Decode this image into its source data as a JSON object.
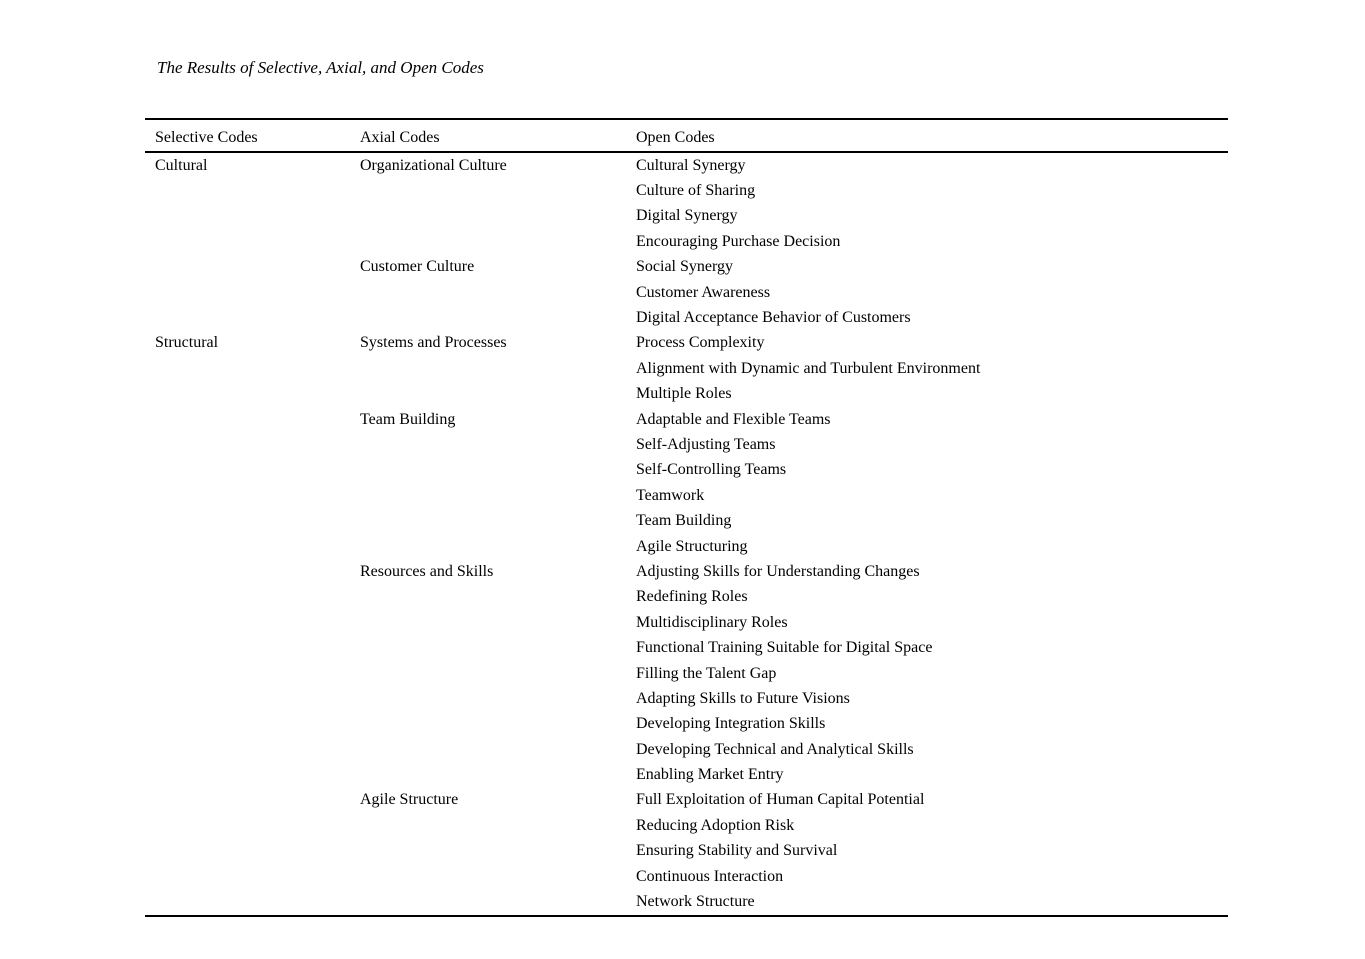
{
  "page": {
    "title": "The Results of Selective, Axial, and Open Codes"
  },
  "table": {
    "headers": {
      "selective": "Selective Codes",
      "axial": "Axial Codes",
      "open": "Open Codes"
    },
    "groups": [
      {
        "selective": "Cultural",
        "axial_groups": [
          {
            "axial": "Organizational Culture",
            "open": [
              "Cultural Synergy",
              "Culture of Sharing",
              "Digital Synergy",
              "Encouraging Purchase Decision"
            ]
          },
          {
            "axial": "Customer Culture",
            "open": [
              "Social Synergy",
              "Customer Awareness",
              "Digital Acceptance Behavior of Customers"
            ]
          }
        ]
      },
      {
        "selective": "Structural",
        "axial_groups": [
          {
            "axial": "Systems and Processes",
            "open": [
              "Process Complexity",
              "Alignment with Dynamic and Turbulent Environment",
              "Multiple Roles"
            ]
          },
          {
            "axial": "Team Building",
            "open": [
              "Adaptable and Flexible Teams",
              "Self-Adjusting Teams",
              "Self-Controlling Teams",
              "Teamwork",
              "Team Building",
              "Agile Structuring"
            ]
          },
          {
            "axial": "Resources and Skills",
            "open": [
              "Adjusting Skills for Understanding Changes",
              "Redefining Roles",
              "Multidisciplinary Roles",
              "Functional Training Suitable for Digital Space",
              "Filling the Talent Gap",
              "Adapting Skills to Future Visions",
              "Developing Integration Skills",
              "Developing Technical and Analytical Skills",
              "Enabling Market Entry"
            ]
          },
          {
            "axial": "Agile Structure",
            "open": [
              "Full Exploitation of Human Capital Potential",
              "Reducing Adoption Risk",
              "Ensuring Stability and Survival",
              "Continuous Interaction",
              "Network Structure"
            ]
          }
        ]
      }
    ]
  }
}
